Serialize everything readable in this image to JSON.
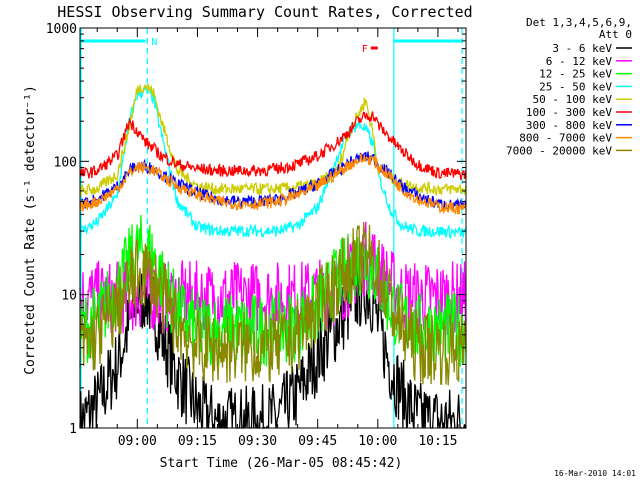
{
  "chart_data": {
    "type": "line",
    "title": "HESSI Observing Summary Count Rates, Corrected",
    "xlabel": "Start Time (26-Mar-05 08:45:42)",
    "ylabel": "Corrected Count Rate (s⁻¹ detector⁻¹)",
    "yscale": "log",
    "ylim": [
      1,
      1000
    ],
    "xlim": [
      "08:45:42",
      "10:22:00"
    ],
    "x_ticks": [
      "09:00",
      "09:15",
      "09:30",
      "09:45",
      "10:00",
      "10:15"
    ],
    "y_ticks": [
      "1",
      "10",
      "100",
      "1000"
    ],
    "legend_header": [
      "Det 1,3,4,5,6,9,",
      "Att 0"
    ],
    "legend_position": "right",
    "x_sample": [
      "08:46",
      "08:50",
      "08:55",
      "08:58",
      "09:00",
      "09:02",
      "09:04",
      "09:06",
      "09:10",
      "09:15",
      "09:20",
      "09:25",
      "09:30",
      "09:35",
      "09:40",
      "09:45",
      "09:50",
      "09:53",
      "09:55",
      "09:57",
      "09:59",
      "10:00",
      "10:03",
      "10:06",
      "10:10",
      "10:15",
      "10:21"
    ],
    "series": [
      {
        "name": "3 - 6 keV",
        "color": "#000000",
        "values": [
          1.1,
          1.5,
          3,
          6,
          9,
          10,
          8,
          5,
          2.5,
          1.4,
          1.1,
          1.1,
          1.1,
          1.2,
          1.8,
          3.5,
          6,
          8,
          10,
          11,
          9,
          6,
          3,
          1.8,
          1.2,
          1.1,
          1.1
        ]
      },
      {
        "name": "6 - 12 keV",
        "color": "#ff00ff",
        "values": [
          9.5,
          9.5,
          9.5,
          9.5,
          10,
          10,
          10,
          9.5,
          9.5,
          9.5,
          9.5,
          9.5,
          9.5,
          9.5,
          9.5,
          10,
          11,
          13,
          16,
          19,
          18,
          15,
          12,
          10,
          9.5,
          9.5,
          9.5
        ]
      },
      {
        "name": "12 - 25 keV",
        "color": "#00ff00",
        "values": [
          5.5,
          6.5,
          11,
          17,
          21,
          22,
          19,
          13,
          7.5,
          5.5,
          5.5,
          5.5,
          5.5,
          5.5,
          6,
          8,
          13,
          16,
          18,
          18,
          16,
          13,
          8.5,
          6.5,
          5.5,
          5.5,
          5.5
        ]
      },
      {
        "name": "25 - 50 keV",
        "color": "#00ffff",
        "values": [
          30,
          35,
          55,
          200,
          320,
          340,
          300,
          160,
          50,
          32,
          30,
          30,
          30,
          30,
          33,
          45,
          110,
          170,
          190,
          175,
          130,
          80,
          45,
          33,
          30,
          30,
          29
        ]
      },
      {
        "name": "50 - 100 keV",
        "color": "#cccc00",
        "values": [
          60,
          62,
          80,
          180,
          350,
          370,
          330,
          200,
          85,
          65,
          62,
          62,
          62,
          62,
          64,
          68,
          85,
          170,
          220,
          290,
          150,
          90,
          75,
          68,
          64,
          62,
          62
        ]
      },
      {
        "name": "100 - 300 keV",
        "color": "#ff0000",
        "values": [
          80,
          85,
          110,
          200,
          170,
          140,
          125,
          110,
          95,
          88,
          85,
          85,
          85,
          88,
          95,
          110,
          140,
          170,
          200,
          220,
          220,
          190,
          150,
          120,
          95,
          82,
          80
        ]
      },
      {
        "name": "300 - 800 keV",
        "color": "#0000ff",
        "values": [
          48,
          52,
          65,
          85,
          93,
          92,
          88,
          80,
          68,
          58,
          52,
          50,
          50,
          52,
          58,
          68,
          85,
          98,
          105,
          108,
          105,
          95,
          80,
          65,
          55,
          48,
          46
        ]
      },
      {
        "name": "800 - 7000 keV",
        "color": "#ff8800",
        "values": [
          46,
          50,
          62,
          82,
          90,
          90,
          86,
          78,
          65,
          56,
          50,
          48,
          48,
          50,
          56,
          65,
          82,
          95,
          102,
          105,
          102,
          92,
          78,
          62,
          52,
          46,
          44
        ]
      },
      {
        "name": "7000 - 20000 keV",
        "color": "#888800",
        "values": [
          4,
          5,
          8,
          12,
          14,
          15,
          13,
          10,
          6,
          4,
          4,
          4,
          4,
          4,
          5,
          8,
          13,
          16,
          18,
          19,
          18,
          15,
          9,
          5.5,
          4,
          4,
          3.8
        ]
      }
    ],
    "annotations": [
      {
        "label": "N",
        "color": "#00ffff",
        "span": [
          "08:45:42",
          "09:02"
        ],
        "flag_at": "09:03"
      },
      {
        "label": "F",
        "color": "#ff0000",
        "flag_at": "09:58"
      }
    ],
    "markers": [
      {
        "time": "09:02:30",
        "style": "dashed",
        "color": "#00ffff"
      },
      {
        "time": "10:04:00",
        "style": "solid",
        "color": "#00ffff"
      },
      {
        "time": "10:21:00",
        "style": "dashed",
        "color": "#00ffff"
      }
    ],
    "night_span": [
      "10:04",
      "10:21"
    ],
    "footer": "16-Mar-2010 14:01"
  }
}
